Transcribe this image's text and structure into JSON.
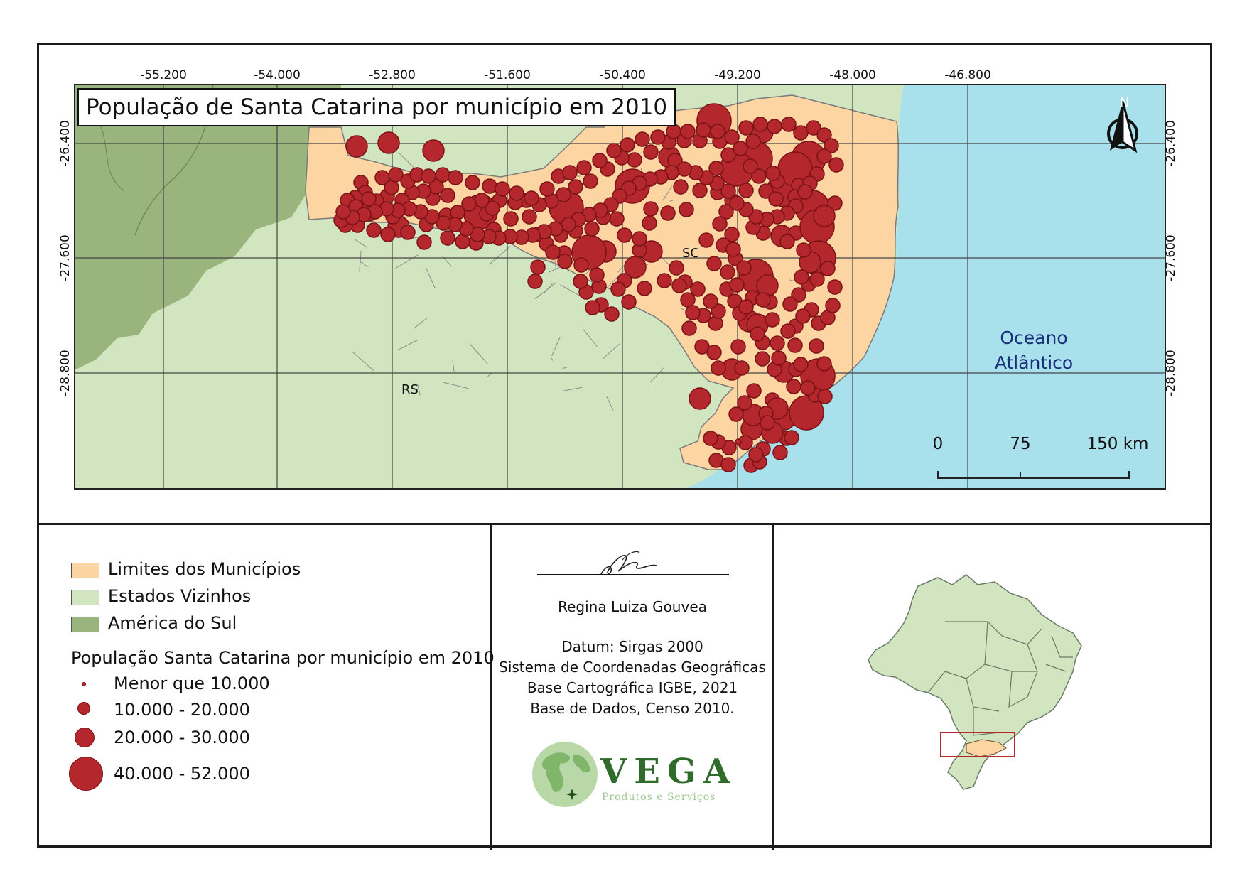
{
  "map": {
    "title": "População de Santa Catarina por município em 2010",
    "labels": {
      "sc": "SC",
      "rs": "RS",
      "ocean_line1": "Oceano",
      "ocean_line2": "Atlântico",
      "north": "N"
    },
    "longitude_ticks": [
      "-55.200",
      "-54.000",
      "-52.800",
      "-51.600",
      "-50.400",
      "-49.200",
      "-48.000",
      "-46.800"
    ],
    "latitude_ticks": [
      "-26.400",
      "-27.600",
      "-28.800"
    ],
    "scale_bar": {
      "labels": [
        "0",
        "75",
        "150 km"
      ]
    },
    "colors": {
      "municipios": "#fdd5a3",
      "estados_vizinhos": "#d1e5c1",
      "america_do_sul": "#99b47c",
      "ocean": "#a8e0ec",
      "population_marker": "#b3272d"
    }
  },
  "legend": {
    "layers": [
      {
        "label": "Limites dos Municípios",
        "color": "#fdd5a3"
      },
      {
        "label": "Estados Vizinhos",
        "color": "#d1e5c1"
      },
      {
        "label": "América do Sul",
        "color": "#99b47c"
      }
    ],
    "population_title": "População Santa Catarina por município em 2010",
    "population_classes": [
      "Menor que 10.000",
      "10.000 - 20.000",
      "20.000 - 30.000",
      "40.000 - 52.000"
    ]
  },
  "credits": {
    "author": "Regina Luiza Gouvea",
    "datum": "Datum: Sirgas 2000",
    "system": "Sistema de Coordenadas Geográficas",
    "base_cartografica": "Base Cartográfica IGBE, 2021",
    "base_dados": "Base de Dados, Censo 2010."
  },
  "logo": {
    "name": "VEGA",
    "subtitle": "Produtos e Serviços"
  }
}
